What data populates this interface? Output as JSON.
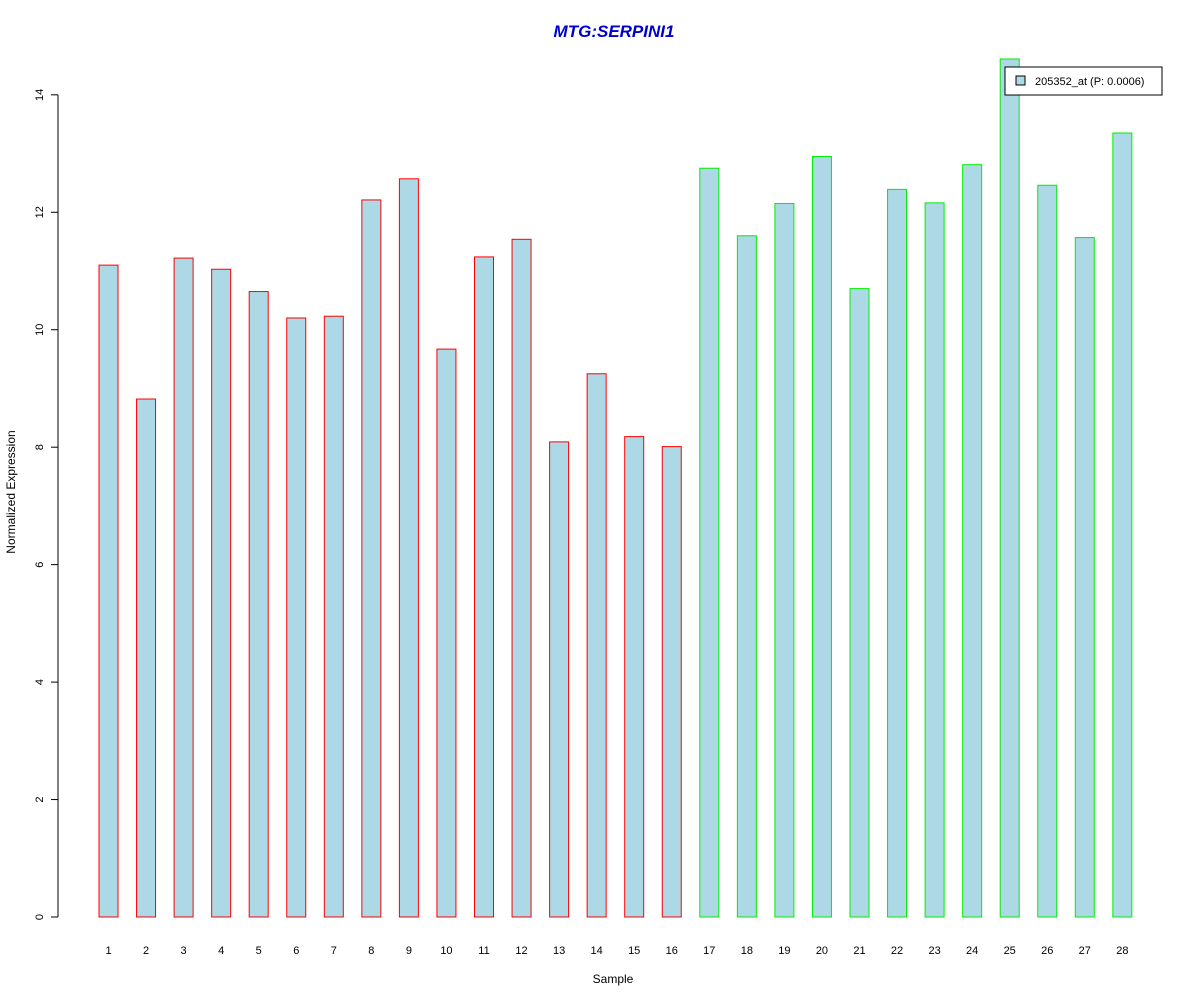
{
  "chart_data": {
    "type": "bar",
    "title": "MTG:SERPINI1",
    "xlabel": "Sample",
    "ylabel": "Normalized Expression",
    "categories": [
      "1",
      "2",
      "3",
      "4",
      "5",
      "6",
      "7",
      "8",
      "9",
      "10",
      "11",
      "12",
      "13",
      "14",
      "15",
      "16",
      "17",
      "18",
      "19",
      "20",
      "21",
      "22",
      "23",
      "24",
      "25",
      "26",
      "27",
      "28"
    ],
    "values": [
      11.1,
      8.82,
      11.22,
      11.03,
      10.65,
      10.2,
      10.23,
      12.21,
      12.57,
      9.67,
      11.24,
      11.54,
      8.09,
      9.25,
      8.18,
      8.01,
      12.75,
      11.6,
      12.15,
      12.95,
      10.7,
      12.39,
      12.16,
      12.81,
      14.61,
      12.46,
      11.57,
      13.35
    ],
    "groups": [
      {
        "members": 16,
        "border_color": "#ff0000"
      },
      {
        "members": 12,
        "border_color": "#00ee00"
      }
    ],
    "bar_fill": "#add8e6",
    "title_color": "#0000cc",
    "ylim": [
      0,
      14.61
    ],
    "yticks": [
      0,
      2,
      4,
      6,
      8,
      10,
      12,
      14
    ],
    "grid": false,
    "legend": {
      "position": "top-right",
      "entries": [
        "205352_at (P: 0.0006)"
      ]
    }
  }
}
